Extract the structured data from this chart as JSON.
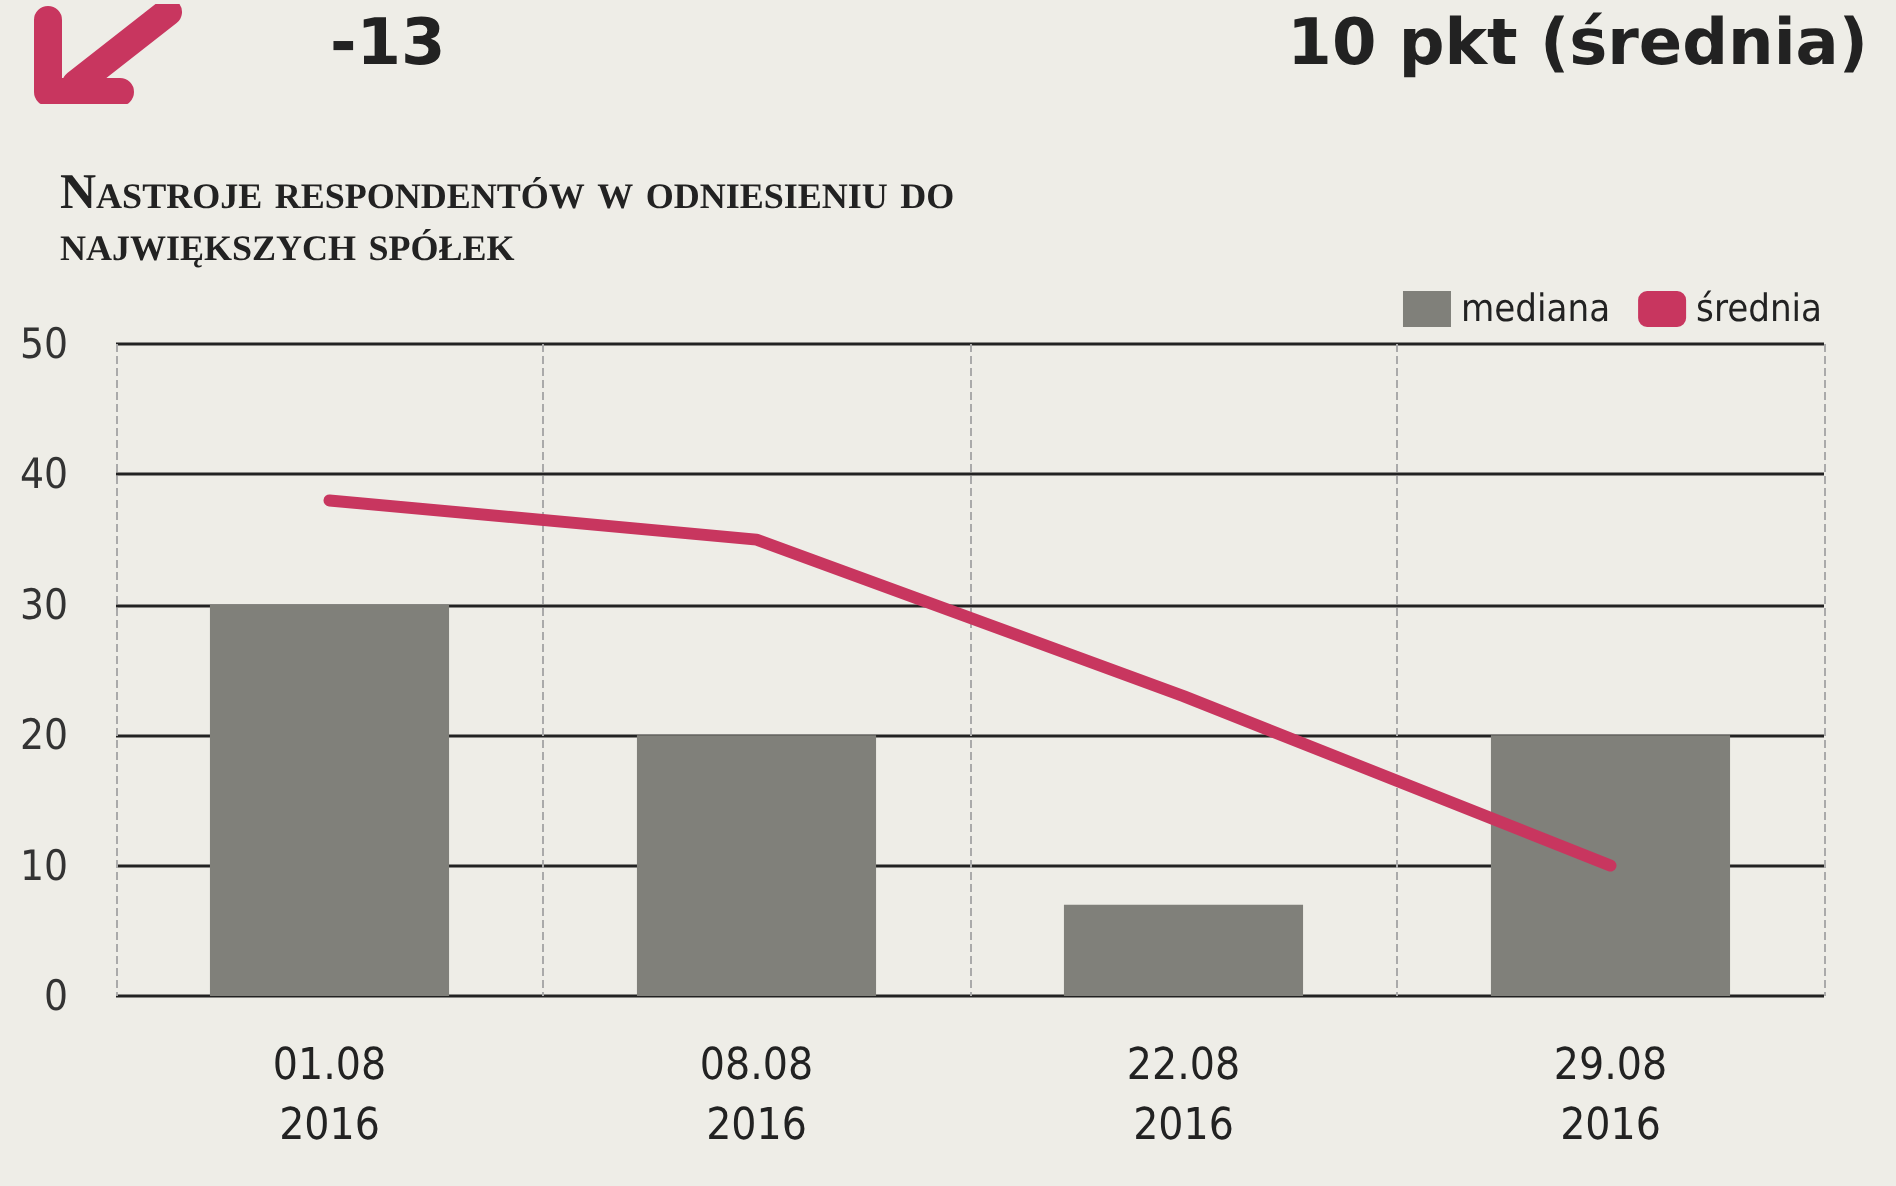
{
  "chart_data": {
    "type": "bar",
    "title": "Nastroje respondentów w odniesieniu do największych spółek",
    "annotations": [
      "-13",
      "10 pkt (średnia)"
    ],
    "categories": [
      "01.08\n2016",
      "08.08\n2016",
      "22.08\n2016",
      "29.08\n2016"
    ],
    "series": [
      {
        "name": "mediana",
        "color": "#80807a",
        "values": [
          30,
          20,
          7,
          20
        ]
      },
      {
        "name": "średnia",
        "type": "line",
        "color": "#c8365f",
        "values": [
          38,
          35,
          23,
          10
        ]
      }
    ],
    "ylim": [
      0,
      50
    ],
    "yticks": [
      0,
      10,
      20,
      30,
      40,
      50
    ],
    "grid": true,
    "legend": "top right",
    "marker": "none"
  }
}
